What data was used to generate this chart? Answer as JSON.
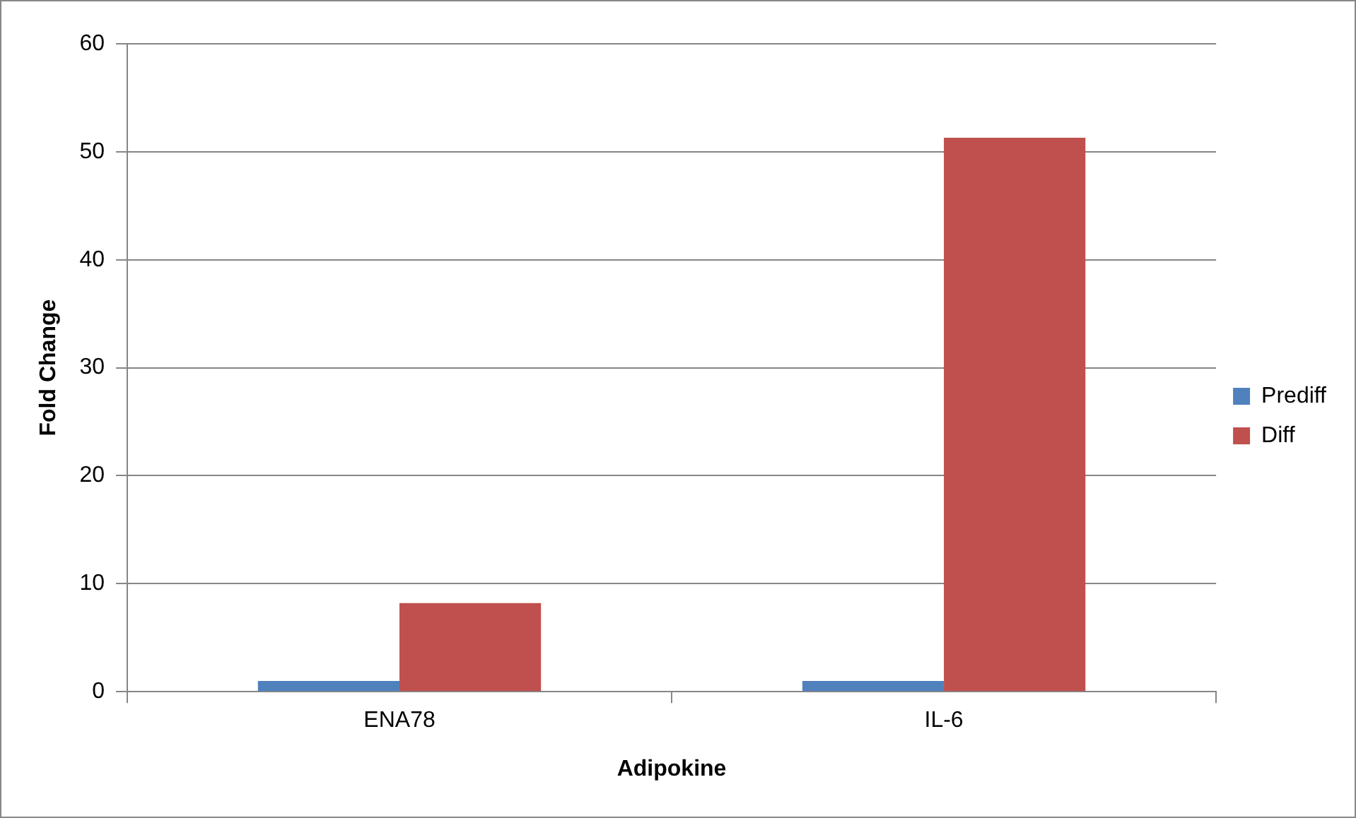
{
  "chart_data": {
    "type": "bar",
    "xlabel": "Adipokine",
    "ylabel": "Fold Change",
    "categories": [
      "ENA78",
      "IL-6"
    ],
    "series": [
      {
        "name": "Prediff",
        "color": "#4f81bd",
        "values": [
          1,
          1
        ]
      },
      {
        "name": "Diff",
        "color": "#c0504d",
        "values": [
          8.2,
          51.3
        ]
      }
    ],
    "ylim": [
      0,
      60
    ],
    "yticks": [
      0,
      10,
      20,
      30,
      40,
      50,
      60
    ],
    "grid": "y",
    "legend": "right"
  }
}
